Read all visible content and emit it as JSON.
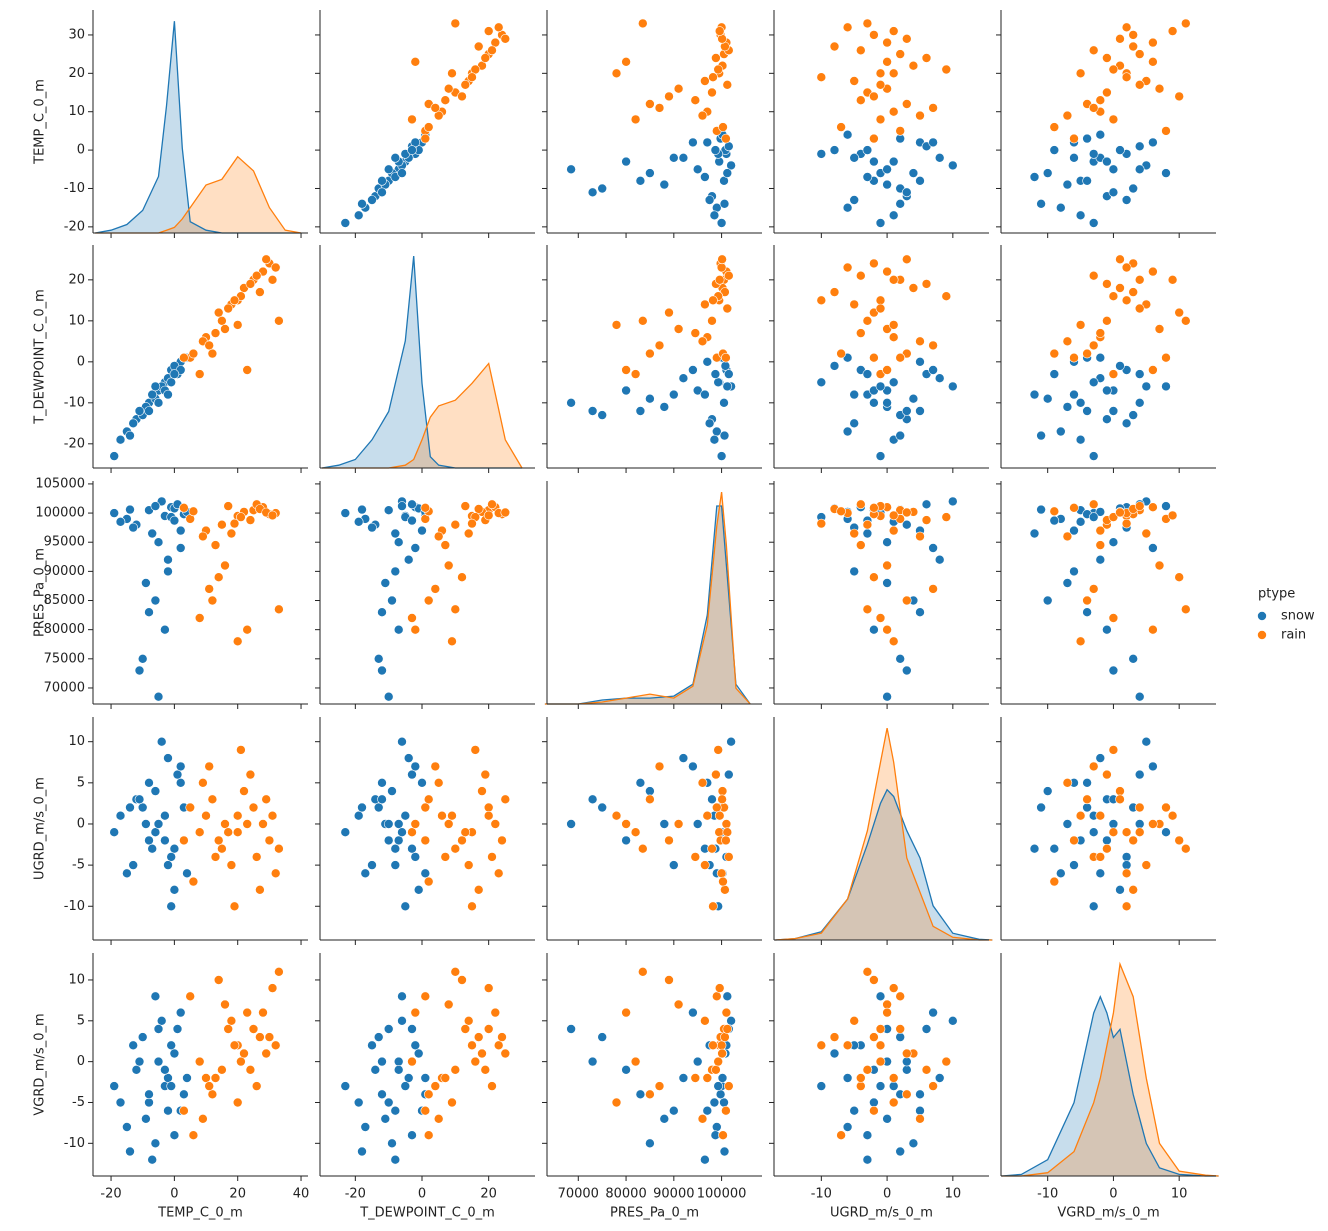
{
  "chart_data": {
    "type": "pairplot",
    "hue_title": "ptype",
    "variables": [
      {
        "name": "TEMP_C_0_m",
        "xlim": [
          -25.7,
          42.2
        ],
        "xticks": [
          -20,
          0,
          20,
          40
        ],
        "ylim": [
          -21.6,
          36.5
        ],
        "yticks": [
          -20,
          -10,
          0,
          10,
          20,
          30
        ],
        "kde_grid": [
          -25,
          -20,
          -15,
          -10,
          -5,
          -2.5,
          0,
          2.5,
          5,
          10,
          15,
          20,
          25,
          30,
          35,
          40
        ]
      },
      {
        "name": "T_DEWPOINT_C_0_m",
        "xlim": [
          -30.6,
          33.9
        ],
        "xticks": [
          -20,
          0,
          20
        ],
        "ylim": [
          -25.9,
          28.5
        ],
        "yticks": [
          -20,
          -10,
          0,
          10,
          20
        ],
        "kde_grid": [
          -30,
          -25,
          -20,
          -15,
          -10,
          -5,
          -2.5,
          0,
          2.5,
          5,
          10,
          15,
          20,
          25,
          30
        ]
      },
      {
        "name": "PRES_Pa_0_m",
        "xlim": [
          63450,
          108460
        ],
        "xticks": [
          70000,
          80000,
          90000,
          100000
        ],
        "ylim": [
          67250,
          105500
        ],
        "yticks": [
          70000,
          75000,
          80000,
          85000,
          90000,
          95000,
          100000,
          105000
        ],
        "kde_grid": [
          63000,
          70000,
          75000,
          80000,
          85000,
          90000,
          94000,
          97000,
          99000,
          100000,
          101000,
          103000,
          106000
        ]
      },
      {
        "name": "UGRD_m/s_0_m",
        "xlim": [
          -17.2,
          15.5
        ],
        "xticks": [
          -10,
          0,
          10
        ],
        "ylim": [
          -14.1,
          13.0
        ],
        "yticks": [
          -10,
          -5,
          0,
          5,
          10
        ],
        "kde_grid": [
          -17,
          -14,
          -10,
          -6,
          -3,
          -1,
          0,
          1,
          3,
          5,
          7,
          10,
          14,
          16
        ]
      },
      {
        "name": "VGRD_m/s_0_m",
        "xlim": [
          -17.1,
          15.6
        ],
        "xticks": [
          -10,
          0,
          10
        ],
        "ylim": [
          -14.0,
          13.3
        ],
        "yticks": [
          -10,
          -5,
          0,
          5,
          10
        ],
        "kde_grid": [
          -17,
          -14,
          -10,
          -6,
          -3,
          -2,
          -1,
          0,
          1,
          3,
          5,
          7,
          10,
          14,
          16
        ]
      }
    ],
    "series": [
      {
        "name": "snow",
        "color": "#1f77b4",
        "values": [
          [
            -3,
            -5,
            99500,
            1,
            -3
          ],
          [
            -8,
            -10,
            100500,
            -2,
            -5
          ],
          [
            -12,
            -14,
            98000,
            3,
            -1
          ],
          [
            -1,
            -2,
            101000,
            -4,
            2
          ],
          [
            2,
            0,
            97000,
            5,
            -6
          ],
          [
            -5,
            -7,
            95000,
            0,
            0
          ],
          [
            -15,
            -17,
            99000,
            -6,
            -8
          ],
          [
            -19,
            -23,
            100000,
            -1,
            -3
          ],
          [
            -6,
            -9,
            85000,
            4,
            -10
          ],
          [
            -10,
            -13,
            75000,
            2,
            3
          ],
          [
            -2,
            -4,
            92000,
            8,
            -2
          ],
          [
            0,
            -1,
            100800,
            -8,
            1
          ],
          [
            3,
            1,
            99800,
            2,
            -4
          ],
          [
            -4,
            -6,
            102000,
            10,
            5
          ],
          [
            -7,
            -8,
            96500,
            -3,
            -12
          ],
          [
            1,
            -3,
            101500,
            6,
            4
          ],
          [
            -13,
            -15,
            97500,
            -5,
            2
          ],
          [
            -9,
            -11,
            88000,
            0,
            -7
          ],
          [
            -3,
            -7,
            80000,
            -2,
            -1
          ],
          [
            -17,
            -19,
            98500,
            1,
            -5
          ],
          [
            4,
            1,
            100200,
            -6,
            -2
          ],
          [
            -11,
            -12,
            73000,
            3,
            0
          ],
          [
            -1,
            -5,
            99300,
            -10,
            -3
          ],
          [
            2,
            -2,
            94000,
            7,
            6
          ],
          [
            -6,
            -6,
            101200,
            -1,
            8
          ],
          [
            -8,
            -12,
            83000,
            5,
            -4
          ],
          [
            0,
            -3,
            98700,
            -3,
            -9
          ],
          [
            -14,
            -18,
            100600,
            2,
            -11
          ],
          [
            -2,
            -8,
            90000,
            -5,
            -6
          ],
          [
            -5,
            -10,
            68500,
            0,
            4
          ]
        ],
        "kde": [
          [
            0,
            0.001,
            0.003,
            0.008,
            0.02,
            0.045,
            0.075,
            0.03,
            0.004,
            0.001,
            0,
            0,
            0,
            0,
            0,
            0
          ],
          [
            0,
            0.001,
            0.003,
            0.01,
            0.02,
            0.045,
            0.075,
            0.03,
            0.004,
            0.001,
            0,
            0,
            0,
            0,
            0
          ],
          [
            0,
            0,
            2e-06,
            3e-06,
            3e-06,
            4e-06,
            1e-05,
            4.5e-05,
            0.0001,
            0.0001,
            7e-05,
            1e-05,
            0
          ],
          [
            0,
            0.001,
            0.006,
            0.03,
            0.07,
            0.1,
            0.11,
            0.105,
            0.08,
            0.06,
            0.025,
            0.005,
            0.0005,
            0
          ],
          [
            0,
            0.001,
            0.01,
            0.045,
            0.1,
            0.11,
            0.1,
            0.085,
            0.09,
            0.05,
            0.02,
            0.005,
            0.001,
            0,
            0
          ]
        ]
      },
      {
        "name": "rain",
        "color": "#ff7f0e",
        "values": [
          [
            20,
            15,
            99500,
            -1,
            2
          ],
          [
            25,
            20,
            100500,
            2,
            4
          ],
          [
            15,
            10,
            98000,
            -3,
            -1
          ],
          [
            28,
            22,
            101000,
            0,
            6
          ],
          [
            10,
            6,
            97000,
            1,
            -2
          ],
          [
            30,
            24,
            99800,
            -2,
            3
          ],
          [
            22,
            18,
            100200,
            4,
            1
          ],
          [
            18,
            14,
            96500,
            -5,
            5
          ],
          [
            12,
            2,
            85000,
            3,
            -4
          ],
          [
            8,
            -3,
            82000,
            -1,
            0
          ],
          [
            26,
            21,
            101500,
            -4,
            -3
          ],
          [
            5,
            1,
            99000,
            2,
            8
          ],
          [
            32,
            23,
            100000,
            -6,
            2
          ],
          [
            16,
            8,
            91000,
            0,
            7
          ],
          [
            24,
            19,
            98800,
            6,
            -1
          ],
          [
            14,
            12,
            89000,
            -2,
            10
          ],
          [
            20,
            9,
            78000,
            1,
            -5
          ],
          [
            27,
            17,
            100700,
            -8,
            3
          ],
          [
            9,
            5,
            96000,
            5,
            -7
          ],
          [
            33,
            10,
            83500,
            -3,
            11
          ],
          [
            21,
            16,
            99300,
            9,
            0
          ],
          [
            17,
            13,
            101200,
            -1,
            4
          ],
          [
            6,
            2,
            100300,
            -7,
            -9
          ],
          [
            29,
            25,
            100100,
            3,
            1
          ],
          [
            13,
            7,
            94500,
            -4,
            -2
          ],
          [
            23,
            -2,
            80000,
            0,
            6
          ],
          [
            19,
            15,
            98200,
            -10,
            2
          ],
          [
            11,
            4,
            87000,
            7,
            -3
          ],
          [
            31,
            20,
            99600,
            1,
            9
          ],
          [
            3,
            1,
            100900,
            -2,
            -6
          ]
        ],
        "kde": [
          [
            0,
            0,
            0,
            0,
            0,
            0.001,
            0.002,
            0.005,
            0.009,
            0.017,
            0.019,
            0.027,
            0.022,
            0.009,
            0.001,
            0
          ],
          [
            0,
            0,
            0,
            0,
            0,
            0.001,
            0.003,
            0.01,
            0.018,
            0.022,
            0.024,
            0.03,
            0.037,
            0.01,
            0
          ],
          [
            0,
            0,
            1e-06,
            3e-06,
            5e-06,
            3e-06,
            9e-06,
            4e-05,
            9e-05,
            0.000107,
            8e-05,
            8e-06,
            0
          ],
          [
            0,
            0.001,
            0.005,
            0.03,
            0.08,
            0.13,
            0.155,
            0.13,
            0.06,
            0.035,
            0.01,
            0.002,
            0,
            0
          ],
          [
            0,
            0,
            0.002,
            0.015,
            0.045,
            0.06,
            0.08,
            0.1,
            0.13,
            0.11,
            0.06,
            0.02,
            0.003,
            0.0005,
            0
          ]
        ]
      }
    ]
  }
}
